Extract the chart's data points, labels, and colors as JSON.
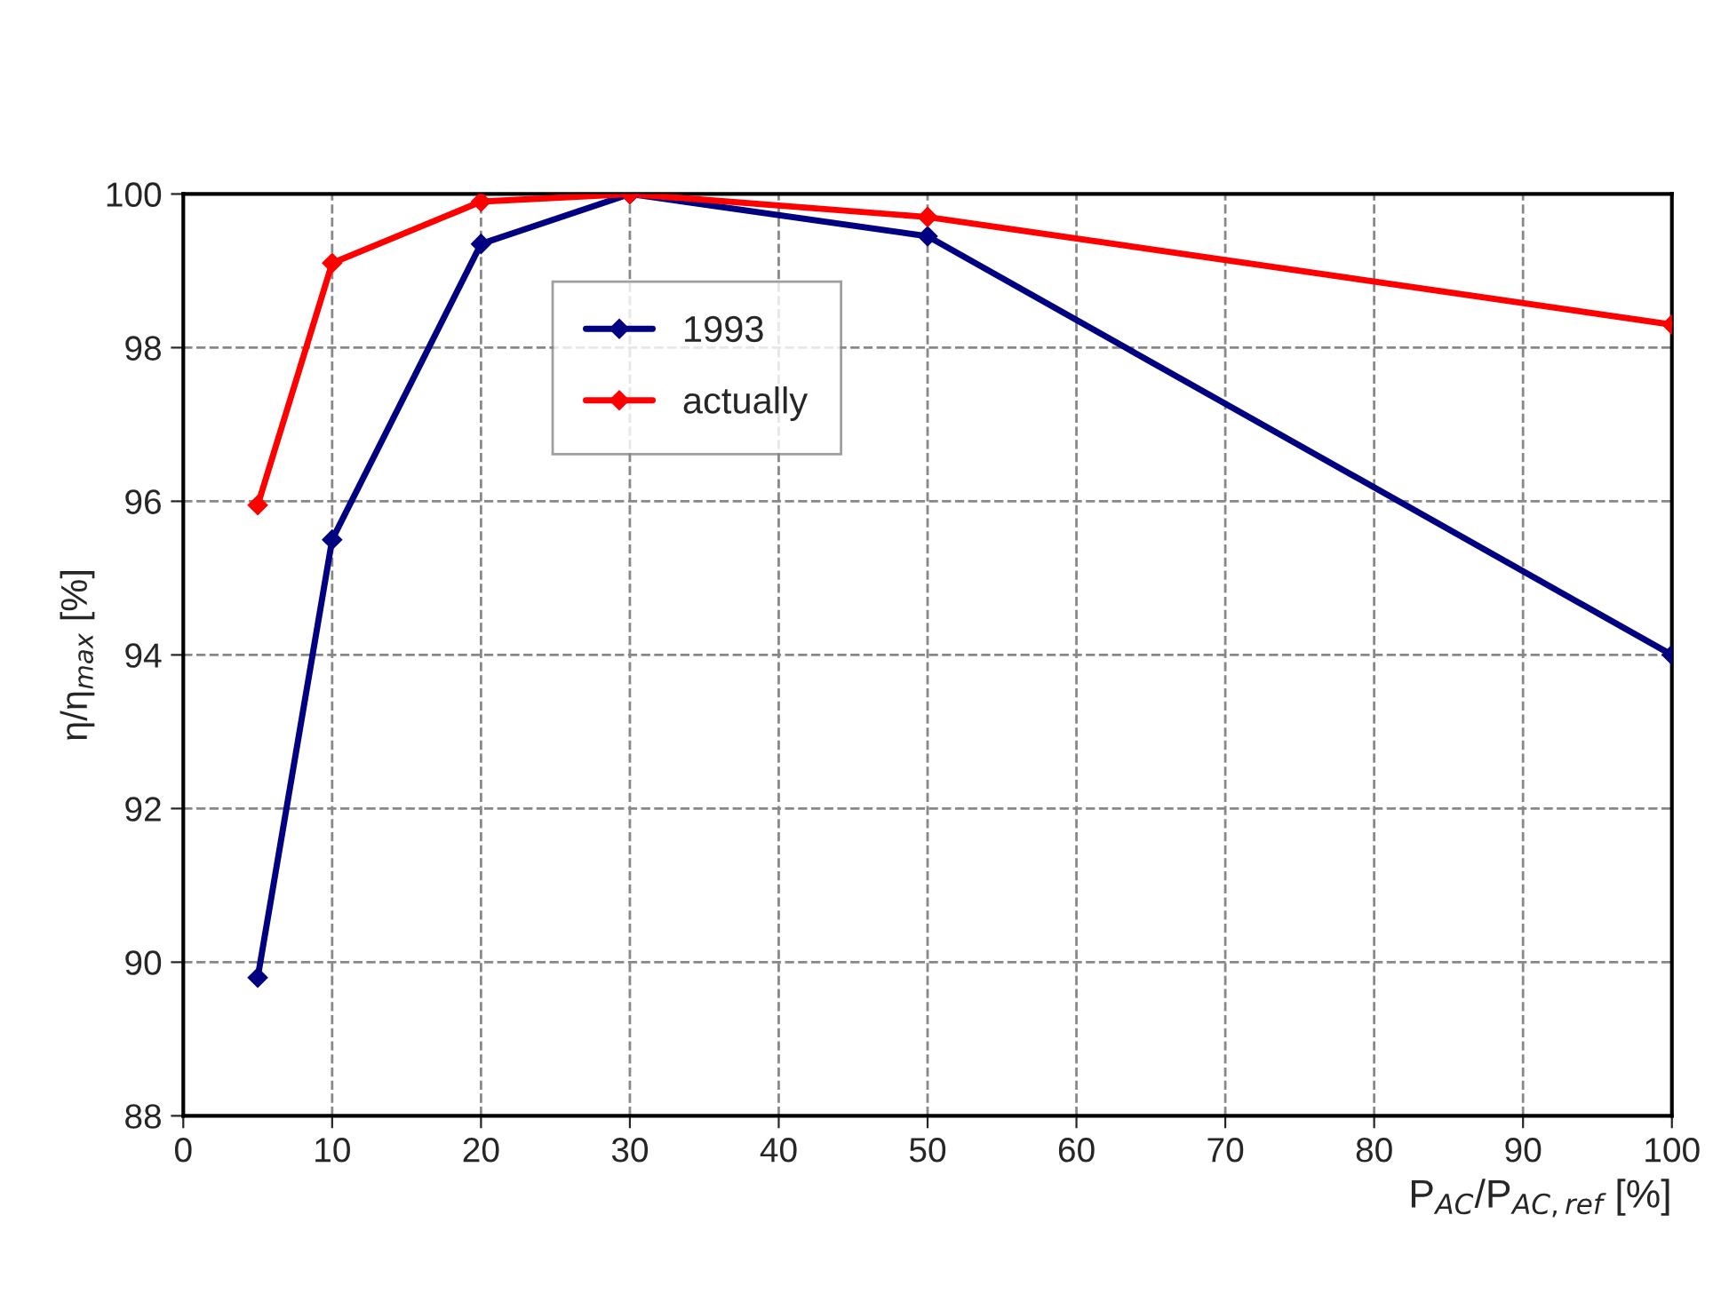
{
  "chart_data": {
    "type": "line",
    "xlabel": "P$_{AC}$/P$_{AC,ref}$ [%]",
    "ylabel": "η/η$_{max}$ [%]",
    "series": [
      {
        "name": "1993",
        "color": "#000080",
        "x": [
          5,
          10,
          20,
          30,
          50,
          100
        ],
        "values": [
          89.8,
          95.5,
          99.35,
          100,
          99.45,
          94.0
        ]
      },
      {
        "name": "actually",
        "color": "#ff0000",
        "x": [
          5,
          10,
          20,
          30,
          50,
          100
        ],
        "values": [
          95.95,
          99.1,
          99.9,
          100,
          99.7,
          98.3
        ]
      }
    ],
    "xlim": [
      0,
      100
    ],
    "xticks": [
      0,
      10,
      20,
      30,
      40,
      50,
      60,
      70,
      80,
      90,
      100
    ],
    "ylim": [
      88,
      100
    ],
    "yticks": [
      88,
      90,
      92,
      94,
      96,
      98,
      100
    ],
    "grid": true,
    "legend": "top",
    "marker": "diamond",
    "line_style": "solid"
  }
}
